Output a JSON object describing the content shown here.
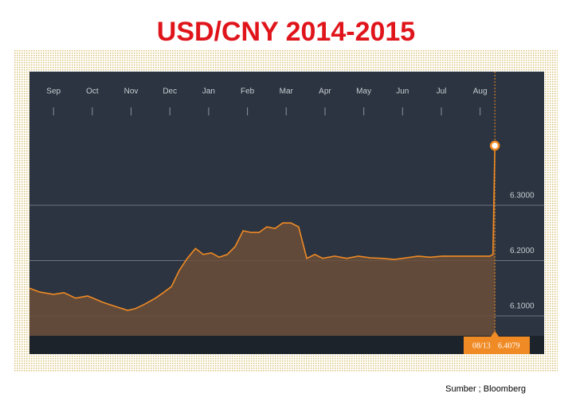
{
  "chart_data": {
    "type": "line",
    "title": "USD/CNY 2014-2015",
    "source": "Sumber ; Bloomberg",
    "end_date_label": "08/13",
    "end_value_label": "6.4079",
    "color": "#f08a24",
    "xlim": [
      -0.62,
      12.65
    ],
    "xticks": [
      {
        "value": 0,
        "label": "Sep"
      },
      {
        "value": 1,
        "label": "Oct"
      },
      {
        "value": 2,
        "label": "Nov"
      },
      {
        "value": 3,
        "label": "Dec"
      },
      {
        "value": 4,
        "label": "Jan"
      },
      {
        "value": 5,
        "label": "Feb"
      },
      {
        "value": 6,
        "label": "Mar"
      },
      {
        "value": 7,
        "label": "Apr"
      },
      {
        "value": 8,
        "label": "May"
      },
      {
        "value": 9,
        "label": "Jun"
      },
      {
        "value": 10,
        "label": "Jul"
      },
      {
        "value": 11,
        "label": "Aug"
      }
    ],
    "ylim": [
      6.064,
      6.477
    ],
    "yticks": [
      {
        "value": 6.1,
        "label": "6.1000"
      },
      {
        "value": 6.2,
        "label": "6.2000"
      },
      {
        "value": 6.3,
        "label": "6.3000"
      }
    ],
    "grid": true,
    "x": [
      -0.62,
      -0.35,
      0,
      0.27,
      0.57,
      0.88,
      1.09,
      1.29,
      1.6,
      1.91,
      2.11,
      2.32,
      2.63,
      2.83,
      3.04,
      3.24,
      3.45,
      3.66,
      3.86,
      4.07,
      4.27,
      4.48,
      4.68,
      4.89,
      5.09,
      5.3,
      5.5,
      5.71,
      5.91,
      6.12,
      6.32,
      6.53,
      6.74,
      6.94,
      7.25,
      7.56,
      7.86,
      8.17,
      8.48,
      8.79,
      9.1,
      9.4,
      9.71,
      10.02,
      10.33,
      10.64,
      10.94,
      11.25,
      11.33,
      11.38
    ],
    "values": [
      6.15,
      6.143,
      6.139,
      6.142,
      6.132,
      6.136,
      6.13,
      6.124,
      6.117,
      6.11,
      6.113,
      6.12,
      6.132,
      6.142,
      6.153,
      6.182,
      6.204,
      6.222,
      6.211,
      6.214,
      6.206,
      6.211,
      6.225,
      6.254,
      6.251,
      6.251,
      6.261,
      6.258,
      6.268,
      6.268,
      6.261,
      6.204,
      6.211,
      6.204,
      6.208,
      6.204,
      6.208,
      6.205,
      6.204,
      6.202,
      6.205,
      6.208,
      6.206,
      6.208,
      6.208,
      6.208,
      6.208,
      6.208,
      6.211,
      6.4079
    ]
  }
}
